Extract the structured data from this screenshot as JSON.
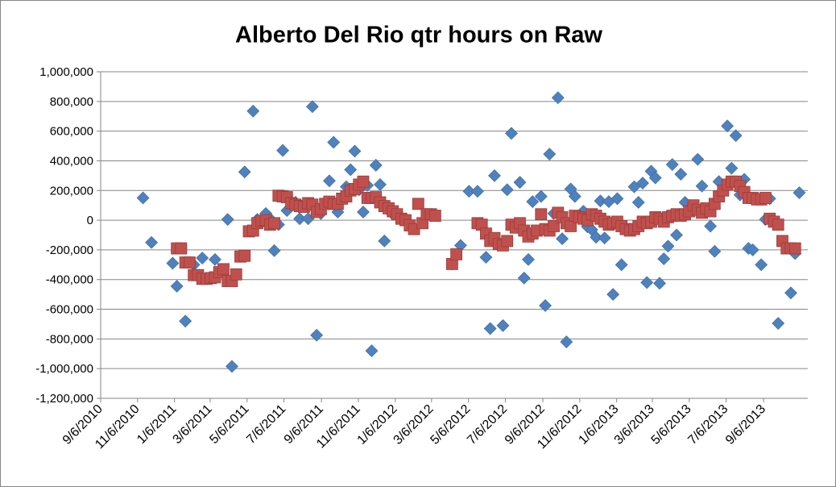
{
  "chart_data": {
    "type": "scatter",
    "title": "Alberto Del Rio qtr hours on Raw",
    "xlim": [
      "2010-09-06",
      "2013-11-18"
    ],
    "xticks": [
      {
        "value": "2010-09-06",
        "label": "9/6/2010"
      },
      {
        "value": "2010-11-06",
        "label": "11/6/2010"
      },
      {
        "value": "2011-01-06",
        "label": "1/6/2011"
      },
      {
        "value": "2011-03-06",
        "label": "3/6/2011"
      },
      {
        "value": "2011-05-06",
        "label": "5/6/2011"
      },
      {
        "value": "2011-07-06",
        "label": "7/6/2011"
      },
      {
        "value": "2011-09-06",
        "label": "9/6/2011"
      },
      {
        "value": "2011-11-06",
        "label": "11/6/2011"
      },
      {
        "value": "2012-01-06",
        "label": "1/6/2012"
      },
      {
        "value": "2012-03-06",
        "label": "3/6/2012"
      },
      {
        "value": "2012-05-06",
        "label": "5/6/2012"
      },
      {
        "value": "2012-07-06",
        "label": "7/6/2012"
      },
      {
        "value": "2012-09-06",
        "label": "9/6/2012"
      },
      {
        "value": "2012-11-06",
        "label": "11/6/2012"
      },
      {
        "value": "2013-01-06",
        "label": "1/6/2013"
      },
      {
        "value": "2013-03-06",
        "label": "3/6/2013"
      },
      {
        "value": "2013-05-06",
        "label": "5/6/2013"
      },
      {
        "value": "2013-07-06",
        "label": "7/6/2013"
      },
      {
        "value": "2013-09-06",
        "label": "9/6/2013"
      }
    ],
    "ylim": [
      -1200000,
      1000000
    ],
    "yticks": [
      {
        "value": -1200000,
        "label": "-1,200,000"
      },
      {
        "value": -1000000,
        "label": "-1,000,000"
      },
      {
        "value": -800000,
        "label": "-800,000"
      },
      {
        "value": -600000,
        "label": "-600,000"
      },
      {
        "value": -400000,
        "label": "-400,000"
      },
      {
        "value": -200000,
        "label": "-200,000"
      },
      0,
      {
        "value": 200000,
        "label": "200,000"
      },
      {
        "value": 400000,
        "label": "400,000"
      },
      {
        "value": 600000,
        "label": "600,000"
      },
      {
        "value": 800000,
        "label": "800,000"
      },
      {
        "value": 1000000,
        "label": "1,000,000"
      }
    ],
    "grid": true,
    "series": [
      {
        "color": "#4f81bd",
        "marker": "diamond",
        "x": [
          "2010-11-15",
          "2010-11-29",
          "2011-01-03",
          "2011-01-10",
          "2011-01-24",
          "2011-02-07",
          "2011-02-21",
          "2011-03-14",
          "2011-04-04",
          "2011-04-11",
          "2011-05-02",
          "2011-05-16",
          "2011-05-23",
          "2011-06-06",
          "2011-06-13",
          "2011-06-20",
          "2011-06-27",
          "2011-07-04",
          "2011-07-11",
          "2011-07-25",
          "2011-08-01",
          "2011-08-15",
          "2011-08-22",
          "2011-08-29",
          "2011-09-05",
          "2011-09-19",
          "2011-09-26",
          "2011-10-03",
          "2011-10-17",
          "2011-10-24",
          "2011-10-31",
          "2011-11-07",
          "2011-11-14",
          "2011-11-21",
          "2011-11-28",
          "2011-12-05",
          "2011-12-12",
          "2011-12-19",
          "2011-12-26",
          "2012-01-02",
          "2012-04-09",
          "2012-04-23",
          "2012-05-07",
          "2012-05-21",
          "2012-06-04",
          "2012-06-11",
          "2012-06-18",
          "2012-07-02",
          "2012-07-09",
          "2012-07-16",
          "2012-07-30",
          "2012-08-06",
          "2012-08-13",
          "2012-08-20",
          "2012-09-03",
          "2012-09-10",
          "2012-09-17",
          "2012-09-24",
          "2012-10-01",
          "2012-10-08",
          "2012-10-15",
          "2012-10-22",
          "2012-10-29",
          "2012-11-05",
          "2012-11-12",
          "2012-11-19",
          "2012-11-26",
          "2012-12-03",
          "2012-12-10",
          "2012-12-17",
          "2012-12-24",
          "2012-12-31",
          "2013-01-07",
          "2013-01-14",
          "2013-02-04",
          "2013-02-11",
          "2013-02-18",
          "2013-02-25",
          "2013-03-04",
          "2013-03-11",
          "2013-03-18",
          "2013-03-25",
          "2013-04-01",
          "2013-04-08",
          "2013-04-15",
          "2013-04-22",
          "2013-04-29",
          "2013-05-20",
          "2013-05-27",
          "2013-06-10",
          "2013-06-17",
          "2013-06-24",
          "2013-07-08",
          "2013-07-15",
          "2013-07-22",
          "2013-07-29",
          "2013-08-05",
          "2013-08-12",
          "2013-08-19",
          "2013-09-02",
          "2013-09-09",
          "2013-09-16",
          "2013-09-30",
          "2013-10-21",
          "2013-10-28",
          "2013-11-04"
        ],
        "values": [
          150000,
          -150000,
          -290000,
          -445000,
          -680000,
          -300000,
          -255000,
          -265000,
          5000,
          -985000,
          325000,
          735000,
          5000,
          45000,
          10000,
          -205000,
          -30000,
          470000,
          65000,
          120000,
          10000,
          10000,
          765000,
          -775000,
          45000,
          265000,
          525000,
          55000,
          225000,
          340000,
          465000,
          205000,
          55000,
          235000,
          -880000,
          370000,
          240000,
          -140000,
          65000,
          40000,
          -295000,
          -170000,
          195000,
          195000,
          -250000,
          -730000,
          300000,
          -710000,
          205000,
          585000,
          255000,
          -390000,
          -265000,
          125000,
          160000,
          -575000,
          445000,
          45000,
          825000,
          -125000,
          -820000,
          210000,
          160000,
          30000,
          60000,
          -45000,
          -65000,
          -115000,
          130000,
          -120000,
          125000,
          -500000,
          145000,
          -300000,
          225000,
          120000,
          250000,
          -420000,
          330000,
          285000,
          -425000,
          -260000,
          -175000,
          375000,
          -100000,
          310000,
          120000,
          410000,
          230000,
          -40000,
          -210000,
          260000,
          635000,
          350000,
          570000,
          170000,
          275000,
          -190000,
          -200000,
          -300000,
          5000,
          145000,
          -695000,
          -490000,
          -225000,
          185000
        ]
      },
      {
        "color": "#c0504d",
        "marker": "square",
        "x": [
          "2011-01-10",
          "2011-01-17",
          "2011-01-24",
          "2011-01-31",
          "2011-02-07",
          "2011-02-14",
          "2011-02-21",
          "2011-02-28",
          "2011-03-07",
          "2011-03-14",
          "2011-03-21",
          "2011-03-28",
          "2011-04-04",
          "2011-04-11",
          "2011-04-18",
          "2011-04-25",
          "2011-05-02",
          "2011-05-09",
          "2011-05-16",
          "2011-05-23",
          "2011-05-30",
          "2011-06-06",
          "2011-06-13",
          "2011-06-20",
          "2011-06-27",
          "2011-07-04",
          "2011-07-11",
          "2011-07-18",
          "2011-07-25",
          "2011-08-01",
          "2011-08-08",
          "2011-08-15",
          "2011-08-22",
          "2011-08-29",
          "2011-09-05",
          "2011-09-12",
          "2011-09-19",
          "2011-09-26",
          "2011-10-03",
          "2011-10-10",
          "2011-10-17",
          "2011-10-24",
          "2011-10-31",
          "2011-11-07",
          "2011-11-14",
          "2011-11-21",
          "2011-11-28",
          "2011-12-05",
          "2011-12-12",
          "2011-12-19",
          "2011-12-26",
          "2012-01-02",
          "2012-01-09",
          "2012-01-16",
          "2012-01-23",
          "2012-01-30",
          "2012-02-06",
          "2012-02-13",
          "2012-02-20",
          "2012-02-27",
          "2012-03-05",
          "2012-03-12",
          "2012-04-09",
          "2012-04-16",
          "2012-05-21",
          "2012-05-28",
          "2012-06-04",
          "2012-06-11",
          "2012-06-18",
          "2012-06-25",
          "2012-07-02",
          "2012-07-09",
          "2012-07-16",
          "2012-07-23",
          "2012-07-30",
          "2012-08-06",
          "2012-08-13",
          "2012-08-20",
          "2012-08-27",
          "2012-09-03",
          "2012-09-10",
          "2012-09-17",
          "2012-09-24",
          "2012-10-01",
          "2012-10-08",
          "2012-10-15",
          "2012-10-22",
          "2012-10-29",
          "2012-11-05",
          "2012-11-12",
          "2012-11-19",
          "2012-11-26",
          "2012-12-03",
          "2012-12-10",
          "2012-12-17",
          "2012-12-24",
          "2012-12-31",
          "2013-01-07",
          "2013-01-14",
          "2013-01-21",
          "2013-01-28",
          "2013-02-04",
          "2013-02-11",
          "2013-02-18",
          "2013-02-25",
          "2013-03-04",
          "2013-03-11",
          "2013-03-18",
          "2013-03-25",
          "2013-04-01",
          "2013-04-08",
          "2013-04-15",
          "2013-04-22",
          "2013-04-29",
          "2013-05-06",
          "2013-05-13",
          "2013-05-20",
          "2013-05-27",
          "2013-06-03",
          "2013-06-10",
          "2013-06-17",
          "2013-06-24",
          "2013-07-01",
          "2013-07-08",
          "2013-07-15",
          "2013-07-22",
          "2013-07-29",
          "2013-08-05",
          "2013-08-12",
          "2013-08-19",
          "2013-08-26",
          "2013-09-02",
          "2013-09-09",
          "2013-09-16",
          "2013-09-23",
          "2013-09-30",
          "2013-10-07",
          "2013-10-14",
          "2013-10-21",
          "2013-10-28"
        ],
        "values": [
          -190000,
          -190000,
          -285000,
          -285000,
          -370000,
          -370000,
          -395000,
          -395000,
          -390000,
          -385000,
          -350000,
          -330000,
          -410000,
          -410000,
          -365000,
          -245000,
          -240000,
          -75000,
          -70000,
          -20000,
          -5000,
          0,
          -30000,
          -20000,
          165000,
          160000,
          155000,
          115000,
          105000,
          95000,
          90000,
          115000,
          105000,
          55000,
          75000,
          110000,
          125000,
          110000,
          110000,
          145000,
          160000,
          200000,
          210000,
          240000,
          260000,
          150000,
          150000,
          155000,
          120000,
          95000,
          80000,
          60000,
          40000,
          10000,
          0,
          -35000,
          -60000,
          110000,
          -20000,
          40000,
          40000,
          30000,
          -295000,
          -230000,
          -20000,
          -30000,
          -90000,
          -140000,
          -120000,
          -160000,
          -170000,
          -140000,
          -30000,
          -50000,
          -20000,
          -70000,
          -110000,
          -90000,
          -70000,
          40000,
          -60000,
          -70000,
          -40000,
          50000,
          20000,
          -20000,
          -40000,
          30000,
          20000,
          10000,
          0,
          40000,
          30000,
          10000,
          -10000,
          -30000,
          -20000,
          -10000,
          -40000,
          -60000,
          -70000,
          -60000,
          -40000,
          -10000,
          -20000,
          -10000,
          20000,
          10000,
          -10000,
          20000,
          30000,
          40000,
          30000,
          40000,
          60000,
          100000,
          70000,
          50000,
          80000,
          60000,
          110000,
          160000,
          200000,
          240000,
          260000,
          260000,
          230000,
          190000,
          150000,
          150000,
          140000,
          140000,
          150000,
          10000,
          -10000,
          -30000,
          -140000,
          -190000,
          -190000,
          -190000
        ]
      }
    ]
  }
}
